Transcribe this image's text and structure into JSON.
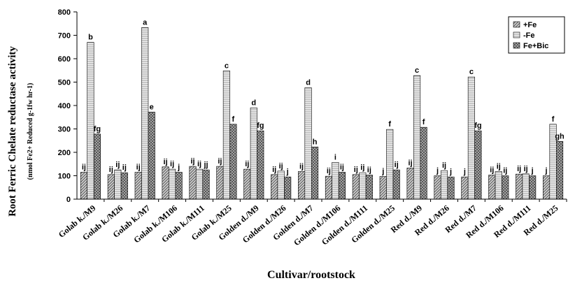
{
  "chart_data": {
    "type": "bar",
    "xlabel": "Cultivar/rootstock",
    "ylabel_main": "Root Ferric Chelate reductase activity",
    "ylabel_sub": "(nmol Fe2+ Reduced g-1fw hr-1)",
    "ylim": [
      0,
      800
    ],
    "yticks": [
      0,
      100,
      200,
      300,
      400,
      500,
      600,
      700,
      800
    ],
    "legend_position": "top-right",
    "categories": [
      "Golab k./M9",
      "Golab k./M26",
      "Golab k./M7",
      "Golab k./M106",
      "Golab k./M111",
      "Golab k./M25",
      "Golden d./M9",
      "Golden d./M26",
      "Golden d./M7",
      "Golden d./M106",
      "Golden d./M111",
      "Golden d./M25",
      "Red d./M9",
      "Red d./M26",
      "Red d./M7",
      "Red d./M106",
      "Red d./M111",
      "Red d./M25"
    ],
    "series": [
      {
        "name": "+Fe",
        "pattern": "diag",
        "values": [
          115,
          105,
          115,
          138,
          140,
          140,
          128,
          105,
          118,
          98,
          105,
          97,
          133,
          100,
          95,
          103,
          107,
          100
        ],
        "labels": [
          "ij",
          "ij",
          "ij",
          "ij",
          "ij",
          "ij",
          "ij",
          "ij",
          "ij",
          "ij",
          "ij",
          "j",
          "ij",
          "j",
          "j",
          "ij",
          "ij",
          "j"
        ]
      },
      {
        "name": "-Fe",
        "pattern": "hlines",
        "values": [
          670,
          125,
          733,
          128,
          128,
          548,
          390,
          120,
          476,
          157,
          113,
          298,
          528,
          122,
          522,
          118,
          108,
          320
        ],
        "labels": [
          "b",
          "ij",
          "a",
          "ij",
          "ij",
          "c",
          "d",
          "ij",
          "d",
          "i",
          "ij",
          "f",
          "c",
          "ij",
          "c",
          "ij",
          "ij",
          "f"
        ]
      },
      {
        "name": "Fe+Bic",
        "pattern": "cross",
        "values": [
          278,
          113,
          372,
          115,
          125,
          320,
          292,
          95,
          223,
          115,
          103,
          125,
          307,
          95,
          292,
          100,
          100,
          247
        ],
        "labels": [
          "fg",
          "ij",
          "e",
          "j",
          "jj",
          "f",
          "fg",
          "j",
          "h",
          "ij",
          "ij",
          "ij",
          "f",
          "j",
          "fg",
          "ij",
          "j",
          "gh"
        ]
      }
    ]
  }
}
